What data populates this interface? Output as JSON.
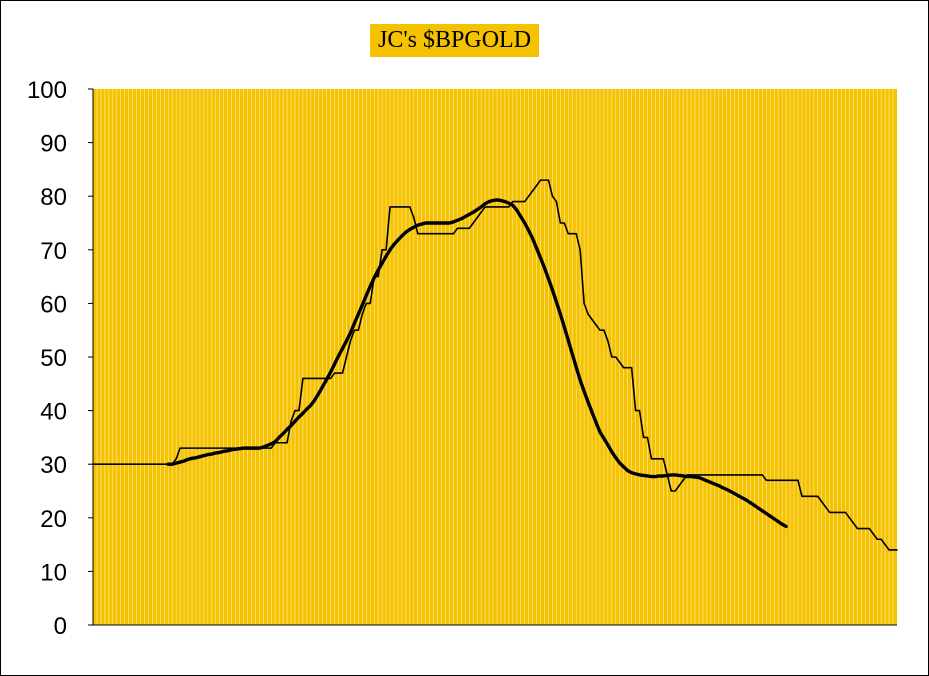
{
  "chart_data": {
    "type": "line",
    "title": "JC's $BPGOLD",
    "ylim": [
      0,
      100
    ],
    "yticks": [
      0,
      10,
      20,
      30,
      40,
      50,
      60,
      70,
      80,
      90,
      100
    ],
    "grid": "vertical lines",
    "colors": {
      "plot_bg": "#f5c200",
      "grid": "#ffffff",
      "title_bg": "#f5c200"
    },
    "series": [
      {
        "values": [
          30,
          30,
          30,
          30,
          30,
          30,
          30,
          30,
          30,
          30,
          30,
          30,
          30,
          30,
          30,
          30,
          30,
          30,
          30,
          30,
          30,
          31,
          33,
          33,
          33,
          33,
          33,
          33,
          33,
          33,
          33,
          33,
          33,
          33,
          33,
          33,
          33,
          33,
          33,
          33,
          33,
          33,
          33,
          33,
          33,
          33,
          34,
          34,
          34,
          34,
          38,
          40,
          40,
          46,
          46,
          46,
          46,
          46,
          46,
          46,
          46,
          47,
          47,
          47,
          50,
          53,
          55,
          55,
          58,
          60,
          60,
          65,
          65,
          70,
          70,
          78,
          78,
          78,
          78,
          78,
          78,
          76,
          73,
          73,
          73,
          73,
          73,
          73,
          73,
          73,
          73,
          73,
          74,
          74,
          74,
          74,
          75,
          76,
          77,
          78,
          78,
          78,
          78,
          78,
          78,
          78,
          79,
          79,
          79,
          79,
          80,
          81,
          82,
          83,
          83,
          83,
          80,
          79,
          75,
          75,
          73,
          73,
          73,
          70,
          60,
          58,
          57,
          56,
          55,
          55,
          53,
          50,
          50,
          49,
          48,
          48,
          48,
          40,
          40,
          35,
          35,
          31,
          31,
          31,
          31,
          28,
          25,
          25,
          26,
          27,
          28,
          28,
          28,
          28,
          28,
          28,
          28,
          28,
          28,
          28,
          28,
          28,
          28,
          28,
          28,
          28,
          28,
          28,
          28,
          28,
          27,
          27,
          27,
          27,
          27,
          27,
          27,
          27,
          27,
          24,
          24,
          24,
          24,
          24,
          23,
          22,
          21,
          21,
          21,
          21,
          21,
          20,
          19,
          18,
          18,
          18,
          18,
          17,
          16,
          16,
          15,
          14,
          14,
          14
        ]
      },
      {
        "start_index": 19,
        "values": [
          30,
          30,
          30.2,
          30.4,
          30.6,
          30.9,
          31.1,
          31.2,
          31.4,
          31.6,
          31.8,
          31.9,
          32.1,
          32.2,
          32.4,
          32.5,
          32.7,
          32.8,
          32.9,
          33,
          33,
          33,
          33,
          33,
          33.2,
          33.5,
          33.8,
          34.2,
          35,
          35.7,
          36.5,
          37.2,
          38,
          38.8,
          39.5,
          40.3,
          41,
          42,
          43.2,
          44.5,
          45.8,
          47.2,
          48.7,
          50.2,
          51.6,
          53,
          54.5,
          56.3,
          58,
          59.7,
          61.5,
          63.2,
          64.8,
          66.2,
          67.5,
          68.8,
          70,
          71,
          71.8,
          72.6,
          73.3,
          73.8,
          74.2,
          74.6,
          74.8,
          75,
          75,
          75,
          75,
          75,
          75,
          75,
          75.2,
          75.5,
          75.8,
          76.2,
          76.6,
          77,
          77.5,
          78,
          78.6,
          79,
          79.2,
          79.3,
          79.2,
          79,
          78.7,
          78.3,
          77.4,
          76.2,
          75,
          73.6,
          72.1,
          70.3,
          68.5,
          66.6,
          64.6,
          62.5,
          60.3,
          58,
          55.6,
          53.1,
          50.6,
          48.1,
          45.7,
          43.6,
          41.6,
          39.7,
          37.8,
          36,
          34.8,
          33.6,
          32.3,
          31.2,
          30.2,
          29.5,
          28.8,
          28.4,
          28.2,
          28,
          27.9,
          27.8,
          27.7,
          27.7,
          27.8,
          27.8,
          27.9,
          28,
          28,
          27.9,
          27.8,
          27.7,
          27.7,
          27.6,
          27.5,
          27.2,
          26.9,
          26.6,
          26.3,
          26,
          25.6,
          25.3,
          24.9,
          24.5,
          24.1,
          23.7,
          23.3,
          22.8,
          22.3,
          21.8,
          21.3,
          20.8,
          20.3,
          19.8,
          19.3,
          18.8,
          18.4
        ]
      }
    ]
  }
}
